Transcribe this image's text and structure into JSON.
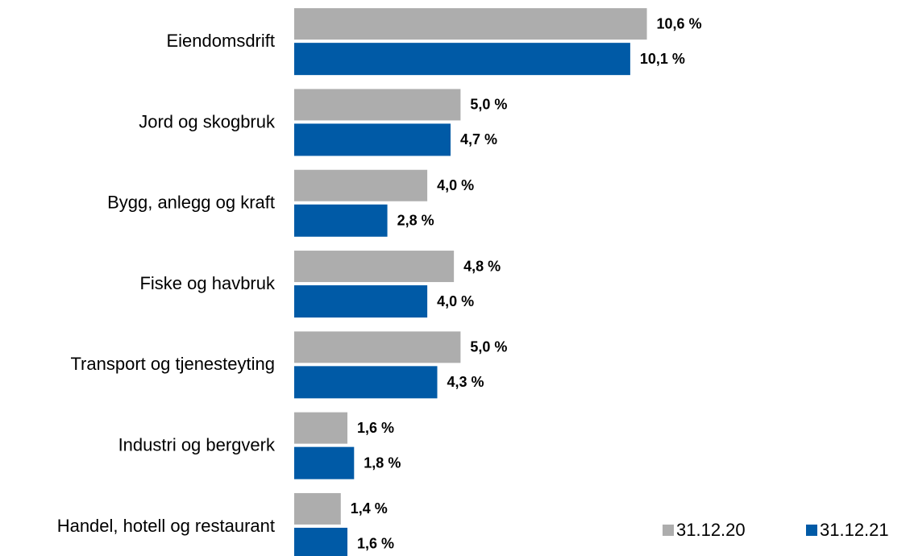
{
  "chart_data": {
    "type": "hbar",
    "categories": [
      "Eiendomsdrift",
      "Jord og skogbruk",
      "Bygg, anlegg og kraft",
      "Fiske og havbruk",
      "Transport og tjenesteyting",
      "Industri og bergverk",
      "Handel, hotell og restaurant"
    ],
    "series": [
      {
        "name": "31.12.20",
        "color": "#adadad",
        "values": [
          10.6,
          5.0,
          4.0,
          4.8,
          5.0,
          1.6,
          1.4
        ],
        "value_labels": [
          "10,6 %",
          "5,0 %",
          "4,0 %",
          "4,8 %",
          "5,0 %",
          "1,6 %",
          "1,4 %"
        ]
      },
      {
        "name": "31.12.21",
        "color": "#005aa6",
        "values": [
          10.1,
          4.7,
          2.8,
          4.0,
          4.3,
          1.8,
          1.6
        ],
        "value_labels": [
          "10,1 %",
          "4,7 %",
          "2,8 %",
          "4,0 %",
          "4,3 %",
          "1,8 %",
          "1,6 %"
        ]
      }
    ],
    "xlim": [
      0,
      18
    ],
    "legend": "bottom-right"
  }
}
